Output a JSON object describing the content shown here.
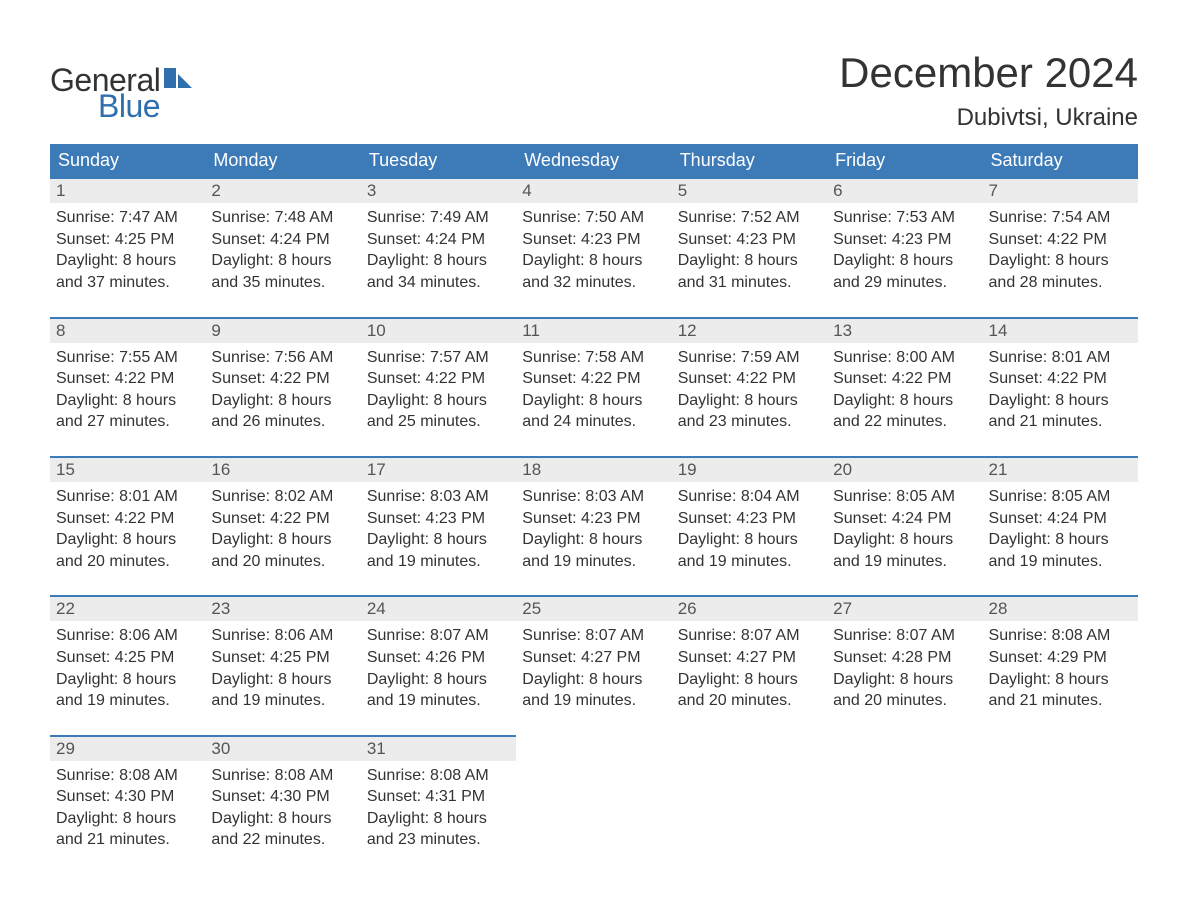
{
  "brand": {
    "word1": "General",
    "word2": "Blue",
    "word1_color": "#333333",
    "word2_color": "#2f6fae",
    "shape_color": "#2f6fae"
  },
  "header": {
    "title": "December 2024",
    "location": "Dubivtsi, Ukraine",
    "title_color": "#333333"
  },
  "calendar": {
    "header_bg": "#3d7ab8",
    "header_text_color": "#ffffff",
    "row_border_color": "#3d7ab8",
    "daynum_bg": "#ececec",
    "body_bg": "#ffffff",
    "text_color": "#333333",
    "columns": [
      "Sunday",
      "Monday",
      "Tuesday",
      "Wednesday",
      "Thursday",
      "Friday",
      "Saturday"
    ],
    "weeks": [
      [
        {
          "n": "1",
          "sunrise": "Sunrise: 7:47 AM",
          "sunset": "Sunset: 4:25 PM",
          "d1": "Daylight: 8 hours",
          "d2": "and 37 minutes."
        },
        {
          "n": "2",
          "sunrise": "Sunrise: 7:48 AM",
          "sunset": "Sunset: 4:24 PM",
          "d1": "Daylight: 8 hours",
          "d2": "and 35 minutes."
        },
        {
          "n": "3",
          "sunrise": "Sunrise: 7:49 AM",
          "sunset": "Sunset: 4:24 PM",
          "d1": "Daylight: 8 hours",
          "d2": "and 34 minutes."
        },
        {
          "n": "4",
          "sunrise": "Sunrise: 7:50 AM",
          "sunset": "Sunset: 4:23 PM",
          "d1": "Daylight: 8 hours",
          "d2": "and 32 minutes."
        },
        {
          "n": "5",
          "sunrise": "Sunrise: 7:52 AM",
          "sunset": "Sunset: 4:23 PM",
          "d1": "Daylight: 8 hours",
          "d2": "and 31 minutes."
        },
        {
          "n": "6",
          "sunrise": "Sunrise: 7:53 AM",
          "sunset": "Sunset: 4:23 PM",
          "d1": "Daylight: 8 hours",
          "d2": "and 29 minutes."
        },
        {
          "n": "7",
          "sunrise": "Sunrise: 7:54 AM",
          "sunset": "Sunset: 4:22 PM",
          "d1": "Daylight: 8 hours",
          "d2": "and 28 minutes."
        }
      ],
      [
        {
          "n": "8",
          "sunrise": "Sunrise: 7:55 AM",
          "sunset": "Sunset: 4:22 PM",
          "d1": "Daylight: 8 hours",
          "d2": "and 27 minutes."
        },
        {
          "n": "9",
          "sunrise": "Sunrise: 7:56 AM",
          "sunset": "Sunset: 4:22 PM",
          "d1": "Daylight: 8 hours",
          "d2": "and 26 minutes."
        },
        {
          "n": "10",
          "sunrise": "Sunrise: 7:57 AM",
          "sunset": "Sunset: 4:22 PM",
          "d1": "Daylight: 8 hours",
          "d2": "and 25 minutes."
        },
        {
          "n": "11",
          "sunrise": "Sunrise: 7:58 AM",
          "sunset": "Sunset: 4:22 PM",
          "d1": "Daylight: 8 hours",
          "d2": "and 24 minutes."
        },
        {
          "n": "12",
          "sunrise": "Sunrise: 7:59 AM",
          "sunset": "Sunset: 4:22 PM",
          "d1": "Daylight: 8 hours",
          "d2": "and 23 minutes."
        },
        {
          "n": "13",
          "sunrise": "Sunrise: 8:00 AM",
          "sunset": "Sunset: 4:22 PM",
          "d1": "Daylight: 8 hours",
          "d2": "and 22 minutes."
        },
        {
          "n": "14",
          "sunrise": "Sunrise: 8:01 AM",
          "sunset": "Sunset: 4:22 PM",
          "d1": "Daylight: 8 hours",
          "d2": "and 21 minutes."
        }
      ],
      [
        {
          "n": "15",
          "sunrise": "Sunrise: 8:01 AM",
          "sunset": "Sunset: 4:22 PM",
          "d1": "Daylight: 8 hours",
          "d2": "and 20 minutes."
        },
        {
          "n": "16",
          "sunrise": "Sunrise: 8:02 AM",
          "sunset": "Sunset: 4:22 PM",
          "d1": "Daylight: 8 hours",
          "d2": "and 20 minutes."
        },
        {
          "n": "17",
          "sunrise": "Sunrise: 8:03 AM",
          "sunset": "Sunset: 4:23 PM",
          "d1": "Daylight: 8 hours",
          "d2": "and 19 minutes."
        },
        {
          "n": "18",
          "sunrise": "Sunrise: 8:03 AM",
          "sunset": "Sunset: 4:23 PM",
          "d1": "Daylight: 8 hours",
          "d2": "and 19 minutes."
        },
        {
          "n": "19",
          "sunrise": "Sunrise: 8:04 AM",
          "sunset": "Sunset: 4:23 PM",
          "d1": "Daylight: 8 hours",
          "d2": "and 19 minutes."
        },
        {
          "n": "20",
          "sunrise": "Sunrise: 8:05 AM",
          "sunset": "Sunset: 4:24 PM",
          "d1": "Daylight: 8 hours",
          "d2": "and 19 minutes."
        },
        {
          "n": "21",
          "sunrise": "Sunrise: 8:05 AM",
          "sunset": "Sunset: 4:24 PM",
          "d1": "Daylight: 8 hours",
          "d2": "and 19 minutes."
        }
      ],
      [
        {
          "n": "22",
          "sunrise": "Sunrise: 8:06 AM",
          "sunset": "Sunset: 4:25 PM",
          "d1": "Daylight: 8 hours",
          "d2": "and 19 minutes."
        },
        {
          "n": "23",
          "sunrise": "Sunrise: 8:06 AM",
          "sunset": "Sunset: 4:25 PM",
          "d1": "Daylight: 8 hours",
          "d2": "and 19 minutes."
        },
        {
          "n": "24",
          "sunrise": "Sunrise: 8:07 AM",
          "sunset": "Sunset: 4:26 PM",
          "d1": "Daylight: 8 hours",
          "d2": "and 19 minutes."
        },
        {
          "n": "25",
          "sunrise": "Sunrise: 8:07 AM",
          "sunset": "Sunset: 4:27 PM",
          "d1": "Daylight: 8 hours",
          "d2": "and 19 minutes."
        },
        {
          "n": "26",
          "sunrise": "Sunrise: 8:07 AM",
          "sunset": "Sunset: 4:27 PM",
          "d1": "Daylight: 8 hours",
          "d2": "and 20 minutes."
        },
        {
          "n": "27",
          "sunrise": "Sunrise: 8:07 AM",
          "sunset": "Sunset: 4:28 PM",
          "d1": "Daylight: 8 hours",
          "d2": "and 20 minutes."
        },
        {
          "n": "28",
          "sunrise": "Sunrise: 8:08 AM",
          "sunset": "Sunset: 4:29 PM",
          "d1": "Daylight: 8 hours",
          "d2": "and 21 minutes."
        }
      ],
      [
        {
          "n": "29",
          "sunrise": "Sunrise: 8:08 AM",
          "sunset": "Sunset: 4:30 PM",
          "d1": "Daylight: 8 hours",
          "d2": "and 21 minutes."
        },
        {
          "n": "30",
          "sunrise": "Sunrise: 8:08 AM",
          "sunset": "Sunset: 4:30 PM",
          "d1": "Daylight: 8 hours",
          "d2": "and 22 minutes."
        },
        {
          "n": "31",
          "sunrise": "Sunrise: 8:08 AM",
          "sunset": "Sunset: 4:31 PM",
          "d1": "Daylight: 8 hours",
          "d2": "and 23 minutes."
        },
        null,
        null,
        null,
        null
      ]
    ]
  }
}
